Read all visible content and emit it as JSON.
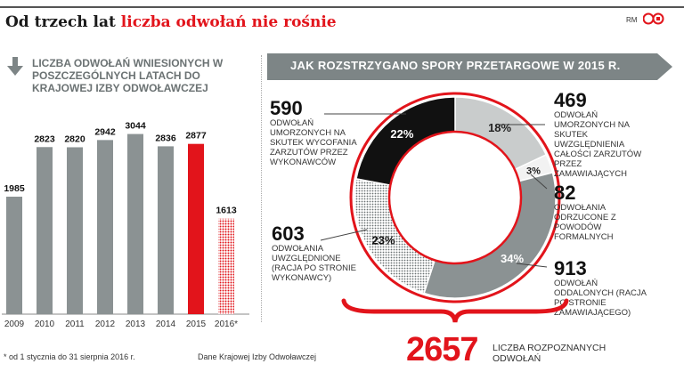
{
  "header": {
    "title_prefix": "Od trzech lat ",
    "title_highlight": "liczba odwołań nie rośnie",
    "credit": "RM"
  },
  "colors": {
    "red": "#e2141b",
    "gray": "#8b9293",
    "light_gray": "#c9cccc",
    "black": "#111111"
  },
  "chart_data": [
    {
      "type": "bar",
      "title": "LICZBA ODWOŁAŃ WNIESIONYCH W POSZCZEGÓLNYCH LATACH DO KRAJOWEJ IZBY ODWOŁAWCZEJ",
      "categories": [
        "2009",
        "2010",
        "2011",
        "2012",
        "2013",
        "2014",
        "2015",
        "2016*"
      ],
      "values": [
        1985,
        2823,
        2820,
        2942,
        3044,
        2836,
        2877,
        1613
      ],
      "styles": [
        "gray",
        "gray",
        "gray",
        "gray",
        "gray",
        "gray",
        "red",
        "red-dotted"
      ],
      "ylim": [
        0,
        3200
      ]
    },
    {
      "type": "pie",
      "title": "JAK ROZSTRZYGANO SPORY PRZETARGOWE W 2015 R.",
      "total": "2657",
      "total_label": "LICZBA ROZPOZNANYCH ODWOŁAŃ",
      "slices": [
        {
          "count": "469",
          "percent": 18,
          "label": "18%",
          "desc": "ODWOŁAŃ UMORZONYCH NA SKUTEK UWZGLĘDNIENIA CAŁOŚCI ZARZUTÓW PRZEZ ZAMAWIAJĄCYCH",
          "style": "light"
        },
        {
          "count": "82",
          "percent": 3,
          "label": "3%",
          "desc": "ODWOŁANIA ODRZUCONE Z POWODÓW FORMALNYCH",
          "style": "white"
        },
        {
          "count": "913",
          "percent": 34,
          "label": "34%",
          "desc": "ODWOŁAŃ ODDALONYCH (RACJA PO STRONIE ZAMAWIAJĄCEGO)",
          "style": "gray"
        },
        {
          "count": "603",
          "percent": 23,
          "label": "23%",
          "desc": "ODWOŁANIA UWZGLĘDNIONE (RACJA PO STRONIE WYKONAWCY)",
          "style": "dotted"
        },
        {
          "count": "590",
          "percent": 22,
          "label": "22%",
          "desc": "ODWOŁAŃ UMORZONYCH NA SKUTEK WYCOFANIA ZARZUTÓW PRZEZ WYKONAWCÓW",
          "style": "black"
        }
      ]
    }
  ],
  "footer": {
    "footnote": "* od 1 stycznia do 31 sierpnia 2016 r.",
    "source": "Dane Krajowej Izby Odwoławczej"
  }
}
